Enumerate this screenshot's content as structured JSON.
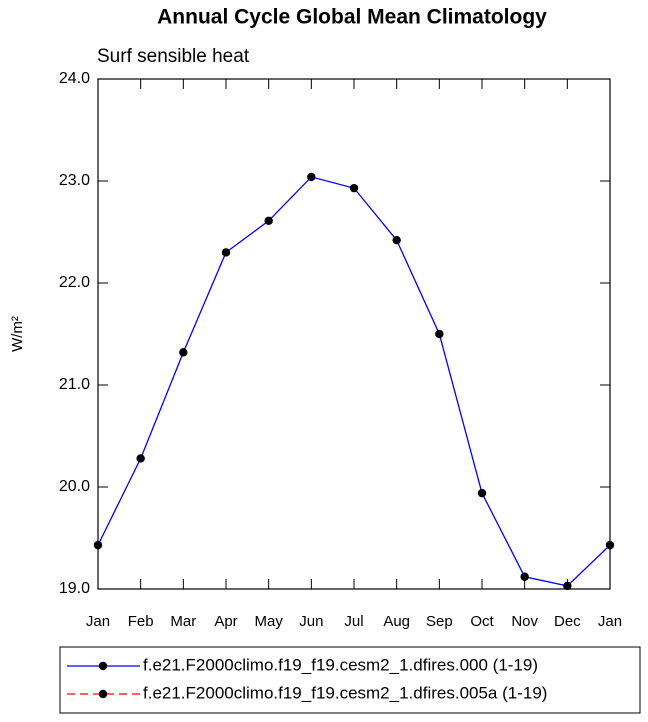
{
  "chart_data": {
    "type": "line",
    "title": "Annual Cycle Global Mean Climatology",
    "subtitle": "Surf sensible heat",
    "y_label": "W/m²",
    "categories": [
      "Jan",
      "Feb",
      "Mar",
      "Apr",
      "May",
      "Jun",
      "Jul",
      "Aug",
      "Sep",
      "Oct",
      "Nov",
      "Dec",
      "Jan"
    ],
    "series": [
      {
        "name": "f.e21.F2000climo.f19_f19.cesm2_1.dfires.000 (1-19)",
        "color": "#0000ff",
        "dash": "solid",
        "values": [
          19.43,
          20.28,
          21.32,
          22.3,
          22.61,
          23.04,
          22.93,
          22.42,
          21.5,
          19.94,
          19.12,
          19.03,
          19.43
        ]
      },
      {
        "name": "f.e21.F2000climo.f19_f19.cesm2_1.dfires.005a (1-19)",
        "color": "#ff0000",
        "dash": "dashed",
        "values": [
          null,
          null,
          null,
          null,
          null,
          null,
          null,
          null,
          null,
          null,
          null,
          null,
          null
        ]
      }
    ],
    "ylim": [
      19.0,
      24.0
    ],
    "yticks": [
      {
        "value": 19,
        "label": "19.0"
      },
      {
        "value": 20,
        "label": "20.0"
      },
      {
        "value": 21,
        "label": "21.0"
      },
      {
        "value": 22,
        "label": "22.0"
      },
      {
        "value": 23,
        "label": "23.0"
      },
      {
        "value": 24,
        "label": "24.0"
      }
    ]
  }
}
